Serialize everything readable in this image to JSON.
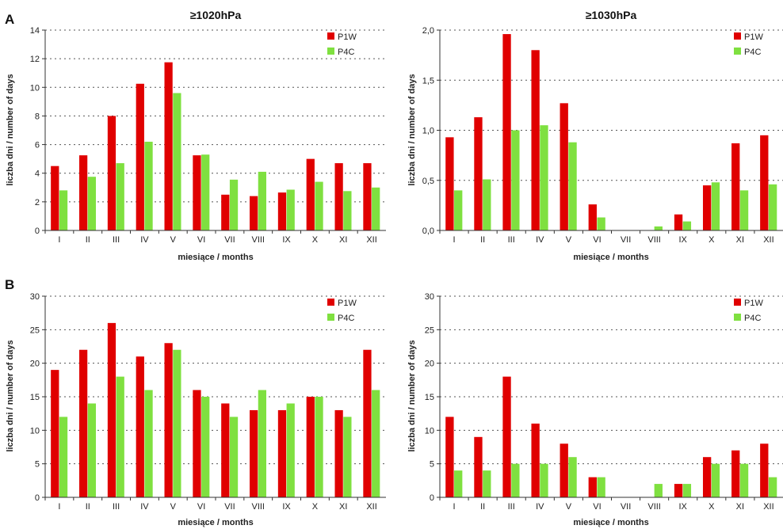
{
  "rows": [
    {
      "label": "A",
      "col_titles": [
        "≥1020hPa",
        "≥1030hPa"
      ]
    },
    {
      "label": "B",
      "col_titles": [
        "",
        ""
      ]
    }
  ],
  "colors": {
    "P1W": "#e00000",
    "P4C": "#7fe040",
    "grid": "#555555",
    "axis": "#333333"
  },
  "chart_data": [
    {
      "type": "bar",
      "title": "≥1020hPa",
      "xlabel": "miesiące / months",
      "ylabel": "liczba dni / number of days",
      "ylim": [
        0,
        14
      ],
      "yticks": [
        0,
        2,
        4,
        6,
        8,
        10,
        12,
        14
      ],
      "ytick_labels": [
        "0",
        "2",
        "4",
        "6",
        "8",
        "10",
        "12",
        "14"
      ],
      "grid": true,
      "legend_position": "top-right",
      "categories": [
        "I",
        "II",
        "III",
        "IV",
        "V",
        "VI",
        "VII",
        "VIII",
        "IX",
        "X",
        "XI",
        "XII"
      ],
      "series": [
        {
          "name": "P1W",
          "color": "#e00000",
          "values": [
            4.5,
            5.25,
            8.0,
            10.25,
            11.75,
            5.25,
            2.5,
            2.4,
            2.65,
            5.0,
            4.7,
            4.7
          ]
        },
        {
          "name": "P4C",
          "color": "#7fe040",
          "values": [
            2.8,
            3.75,
            4.7,
            6.2,
            9.6,
            5.3,
            3.55,
            4.1,
            2.85,
            3.4,
            2.75,
            3.0
          ]
        }
      ]
    },
    {
      "type": "bar",
      "title": "≥1030hPa",
      "xlabel": "miesiące / months",
      "ylabel": "liczba dni / number of days",
      "ylim": [
        0,
        2.0
      ],
      "yticks": [
        0,
        0.5,
        1.0,
        1.5,
        2.0
      ],
      "ytick_labels": [
        "0,0",
        "0,5",
        "1,0",
        "1,5",
        "2,0"
      ],
      "grid": true,
      "legend_position": "top-right",
      "categories": [
        "I",
        "II",
        "III",
        "IV",
        "V",
        "VI",
        "VII",
        "VIII",
        "IX",
        "X",
        "XI",
        "XII"
      ],
      "series": [
        {
          "name": "P1W",
          "color": "#e00000",
          "values": [
            0.93,
            1.13,
            1.96,
            1.8,
            1.27,
            0.26,
            0,
            0,
            0.16,
            0.45,
            0.87,
            0.95
          ]
        },
        {
          "name": "P4C",
          "color": "#7fe040",
          "values": [
            0.4,
            0.51,
            1.0,
            1.05,
            0.88,
            0.13,
            0,
            0.04,
            0.09,
            0.48,
            0.4,
            0.46
          ]
        }
      ]
    },
    {
      "type": "bar",
      "title": "",
      "xlabel": "miesiące / months",
      "ylabel": "liczba dni / number of days",
      "ylim": [
        0,
        30
      ],
      "yticks": [
        0,
        5,
        10,
        15,
        20,
        25,
        30
      ],
      "ytick_labels": [
        "0",
        "5",
        "10",
        "15",
        "20",
        "25",
        "30"
      ],
      "grid": true,
      "legend_position": "top-right",
      "categories": [
        "I",
        "II",
        "III",
        "IV",
        "V",
        "VI",
        "VII",
        "VIII",
        "IX",
        "X",
        "XI",
        "XII"
      ],
      "series": [
        {
          "name": "P1W",
          "color": "#e00000",
          "values": [
            19,
            22,
            26,
            21,
            23,
            16,
            14,
            13,
            13,
            15,
            13,
            22
          ]
        },
        {
          "name": "P4C",
          "color": "#7fe040",
          "values": [
            12,
            14,
            18,
            16,
            22,
            15,
            12,
            16,
            14,
            15,
            12,
            16
          ]
        }
      ]
    },
    {
      "type": "bar",
      "title": "",
      "xlabel": "miesiące / months",
      "ylabel": "liczba dni / number of days",
      "ylim": [
        0,
        30
      ],
      "yticks": [
        0,
        5,
        10,
        15,
        20,
        25,
        30
      ],
      "ytick_labels": [
        "0",
        "5",
        "10",
        "15",
        "20",
        "25",
        "30"
      ],
      "grid": true,
      "legend_position": "top-right",
      "categories": [
        "I",
        "II",
        "III",
        "IV",
        "V",
        "VI",
        "VII",
        "VIII",
        "IX",
        "X",
        "XI",
        "XII"
      ],
      "series": [
        {
          "name": "P1W",
          "color": "#e00000",
          "values": [
            12,
            9,
            18,
            11,
            8,
            3,
            0,
            0,
            2,
            6,
            7,
            8
          ]
        },
        {
          "name": "P4C",
          "color": "#7fe040",
          "values": [
            4,
            4,
            5,
            5,
            6,
            3,
            0,
            2,
            2,
            5,
            5,
            3
          ]
        }
      ]
    }
  ]
}
